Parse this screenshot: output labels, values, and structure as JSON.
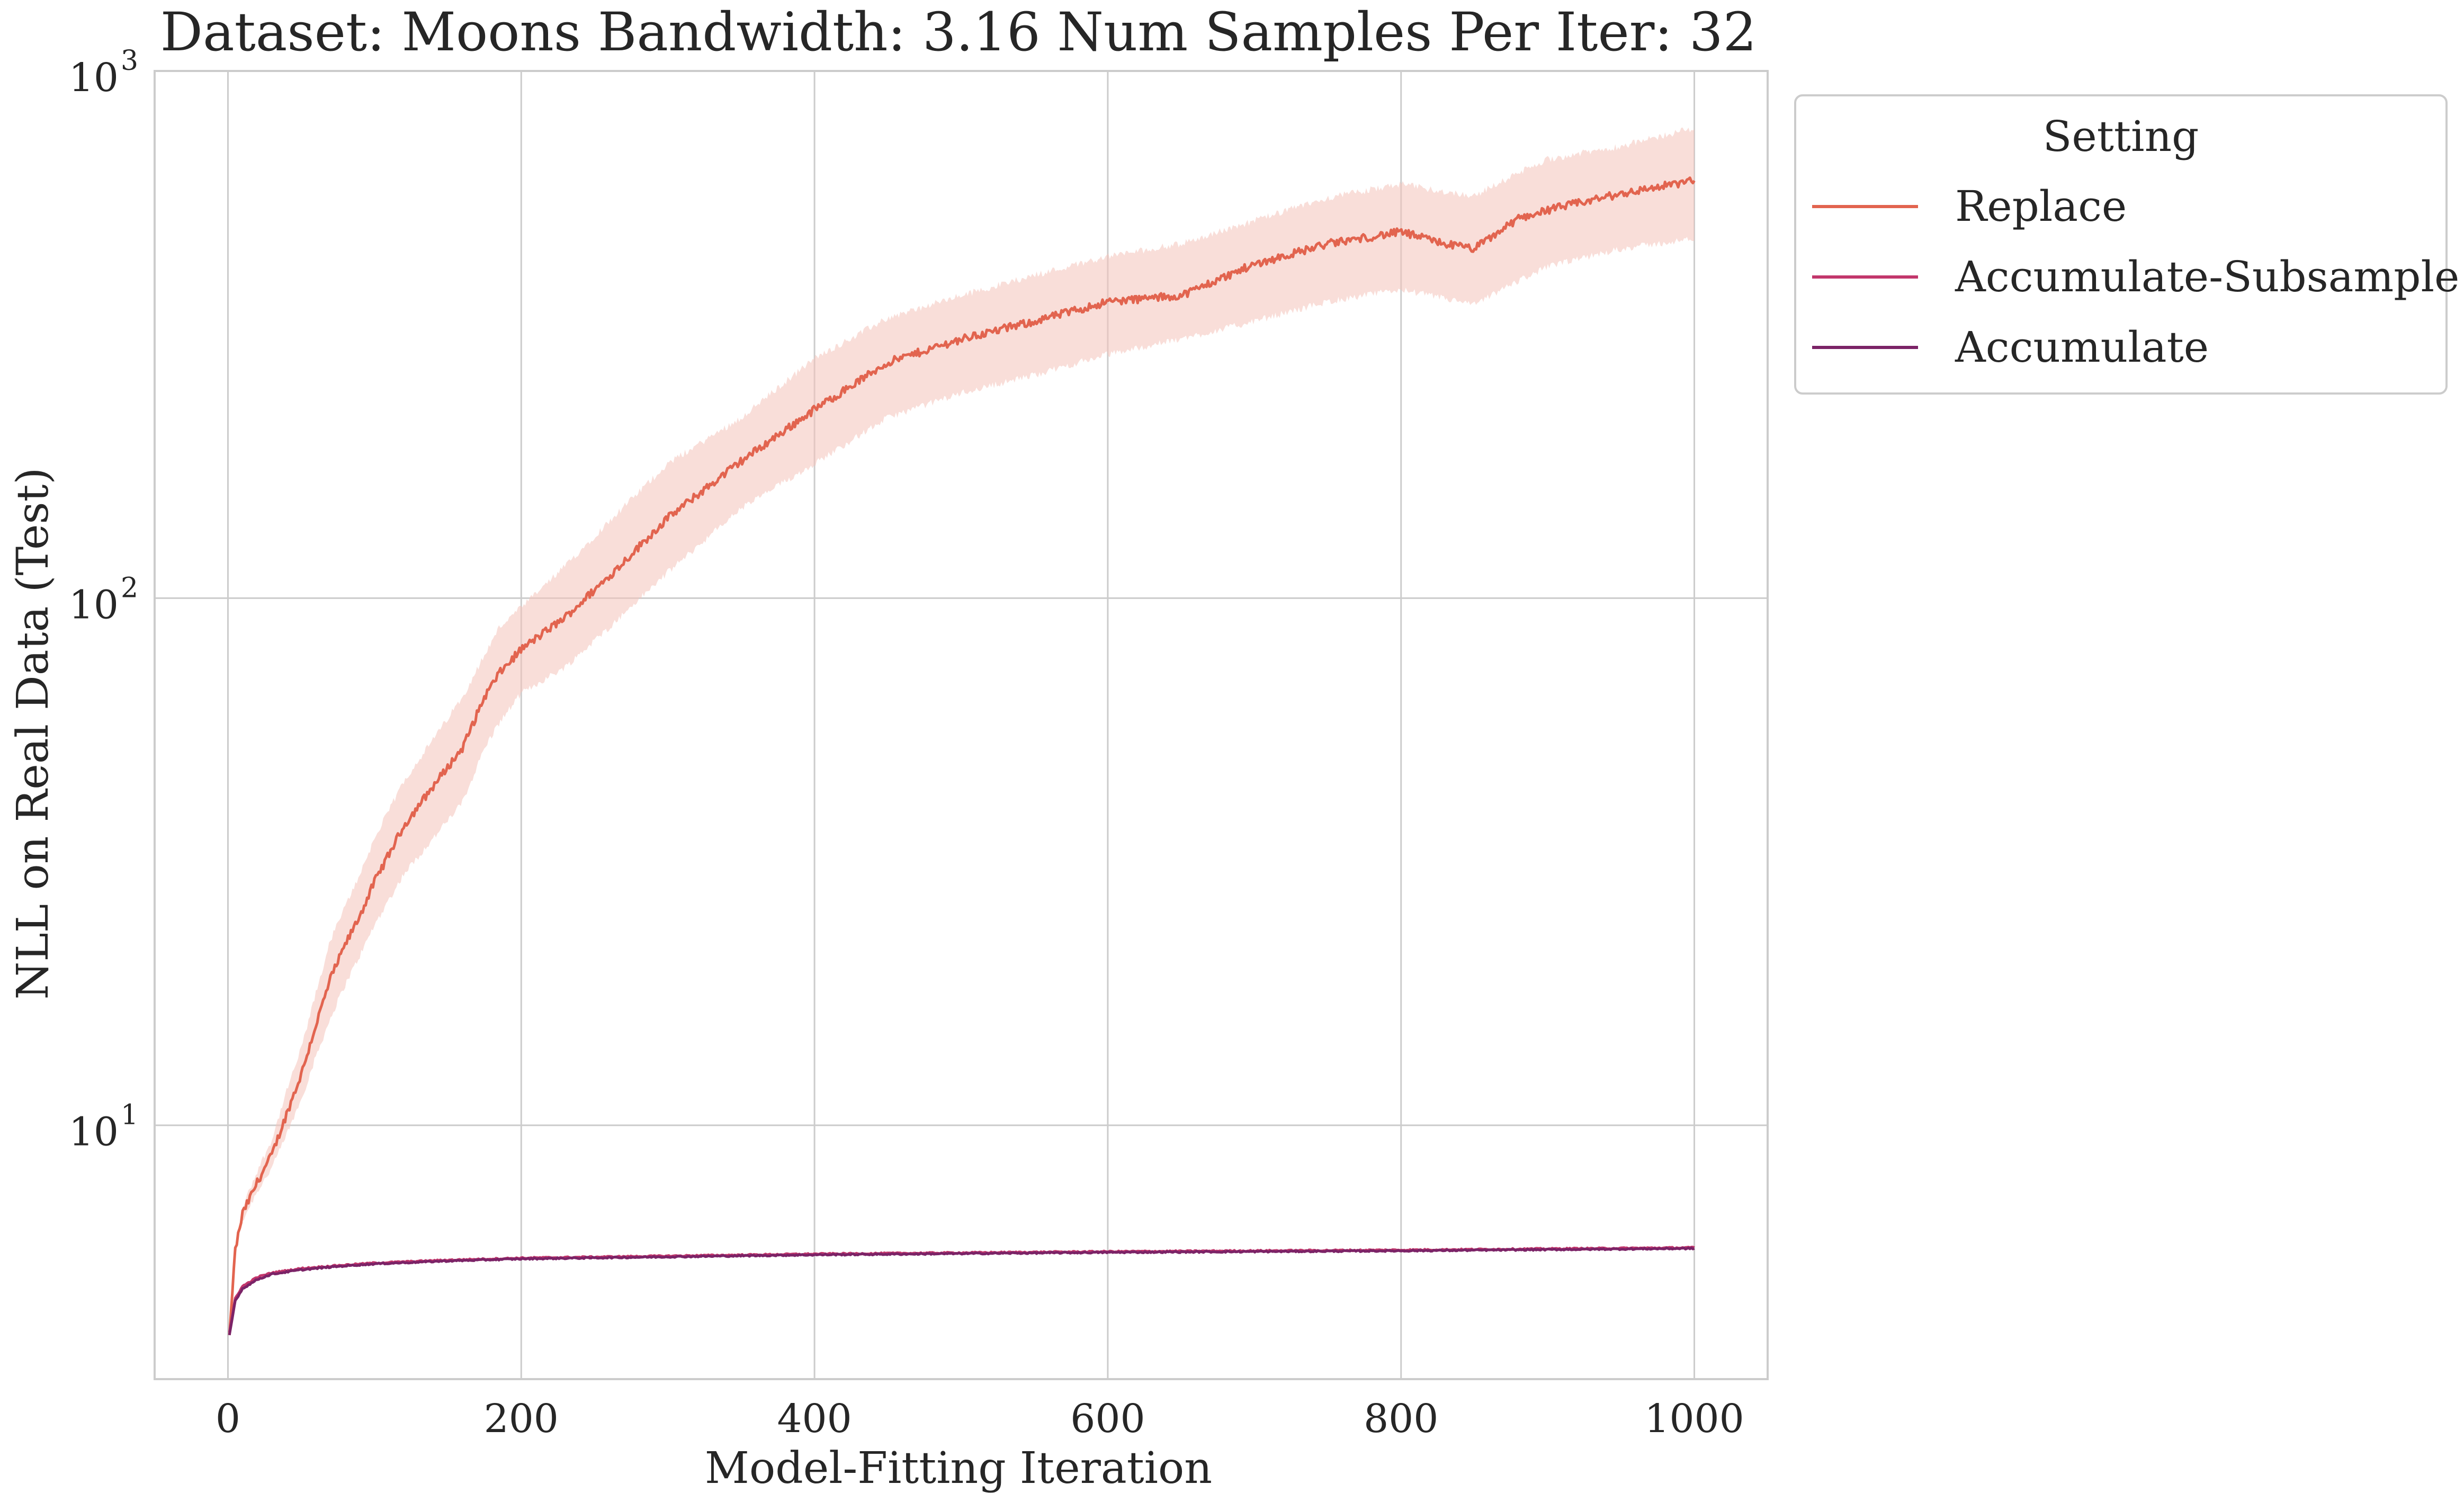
{
  "chart_data": {
    "type": "line",
    "title": "Dataset: Moons Bandwidth: 3.16 Num Samples Per Iter: 32",
    "xlabel": "Model-Fitting Iteration",
    "ylabel": "NLL on Real Data (Test)",
    "xlim": [
      -50,
      1050
    ],
    "ylim": [
      3.3,
      1000
    ],
    "yscale": "log",
    "grid": true,
    "x_ticks": [
      0,
      200,
      400,
      600,
      800,
      1000
    ],
    "x_tick_labels": [
      "0",
      "200",
      "400",
      "600",
      "800",
      "1000"
    ],
    "y_ticks": [
      10,
      100,
      1000
    ],
    "y_tick_labels": [
      {
        "base": "10",
        "exp": "1"
      },
      {
        "base": "10",
        "exp": "2"
      },
      {
        "base": "10",
        "exp": "3"
      }
    ],
    "legend": {
      "title": "Setting",
      "position": "outside-top-right",
      "entries": [
        "Replace",
        "Accumulate-Subsample",
        "Accumulate"
      ]
    },
    "series": [
      {
        "name": "Replace",
        "color": "#e2644f",
        "band_color": "#f4c2b9",
        "x": [
          1,
          5,
          10,
          20,
          30,
          40,
          50,
          60,
          70,
          80,
          90,
          100,
          120,
          140,
          160,
          175,
          185,
          200,
          230,
          260,
          300,
          350,
          400,
          450,
          500,
          550,
          600,
          650,
          700,
          750,
          800,
          830,
          850,
          880,
          900,
          950,
          1000
        ],
        "y": [
          4.0,
          5.8,
          6.8,
          7.8,
          8.8,
          10.5,
          12.5,
          15.5,
          19,
          22,
          25,
          29,
          37,
          44,
          52,
          65,
          72,
          80,
          92,
          110,
          142,
          182,
          228,
          280,
          310,
          335,
          365,
          375,
          430,
          470,
          495,
          470,
          460,
          525,
          545,
          585,
          620
        ],
        "lower": [
          4.0,
          5.7,
          6.6,
          7.5,
          8.3,
          9.6,
          11.2,
          13.5,
          16,
          18.5,
          21,
          24,
          30,
          35,
          41,
          52,
          58,
          66,
          74,
          88,
          112,
          148,
          180,
          220,
          245,
          265,
          290,
          310,
          335,
          365,
          385,
          370,
          360,
          400,
          425,
          460,
          480
        ],
        "upper": [
          4.0,
          5.9,
          7.0,
          8.2,
          9.4,
          11.6,
          14.0,
          17.8,
          22.5,
          26,
          30,
          35,
          45,
          54,
          65,
          78,
          88,
          96,
          115,
          140,
          180,
          220,
          285,
          340,
          375,
          410,
          445,
          470,
          520,
          575,
          610,
          590,
          580,
          640,
          680,
          720,
          780
        ]
      },
      {
        "name": "Accumulate-Subsample",
        "color": "#c2366b",
        "x": [
          1,
          5,
          10,
          20,
          30,
          50,
          75,
          100,
          150,
          200,
          300,
          400,
          500,
          600,
          700,
          800,
          900,
          1000
        ],
        "y": [
          4.05,
          4.7,
          4.95,
          5.15,
          5.25,
          5.35,
          5.42,
          5.48,
          5.55,
          5.6,
          5.65,
          5.7,
          5.73,
          5.76,
          5.78,
          5.8,
          5.83,
          5.86
        ]
      },
      {
        "name": "Accumulate",
        "color": "#7b2367",
        "x": [
          1,
          5,
          10,
          20,
          30,
          50,
          75,
          100,
          150,
          200,
          300,
          400,
          500,
          600,
          700,
          800,
          900,
          1000
        ],
        "y": [
          4.0,
          4.65,
          4.9,
          5.1,
          5.22,
          5.32,
          5.4,
          5.46,
          5.53,
          5.58,
          5.63,
          5.68,
          5.71,
          5.74,
          5.76,
          5.78,
          5.81,
          5.84
        ]
      }
    ]
  }
}
